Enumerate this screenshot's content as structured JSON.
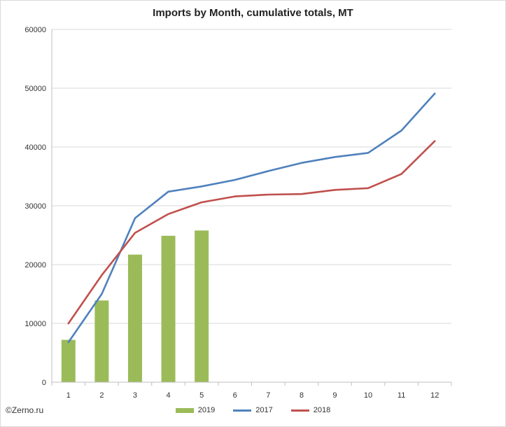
{
  "chart_data": {
    "type": "bar",
    "title": "Imports by Month, cumulative totals, MT",
    "xlabel": "",
    "ylabel": "",
    "categories": [
      "1",
      "2",
      "3",
      "4",
      "5",
      "6",
      "7",
      "8",
      "9",
      "10",
      "11",
      "12"
    ],
    "ylim": [
      0,
      60000
    ],
    "yticks": [
      "0",
      "10000",
      "20000",
      "30000",
      "40000",
      "50000",
      "60000"
    ],
    "grid": true,
    "legend_position": "bottom",
    "series": [
      {
        "name": "2019",
        "type": "bar",
        "color": "#9bbb59",
        "values": [
          7200,
          13900,
          21700,
          24900,
          25800,
          null,
          null,
          null,
          null,
          null,
          null,
          null
        ]
      },
      {
        "name": "2017",
        "type": "line",
        "color": "#4f81bd",
        "values": [
          6800,
          15000,
          27900,
          32400,
          33300,
          34400,
          35900,
          37300,
          38300,
          39000,
          42800,
          49100
        ]
      },
      {
        "name": "2018",
        "type": "line",
        "color": "#c0504d",
        "values": [
          10000,
          18200,
          25400,
          28600,
          30600,
          31600,
          31900,
          32000,
          32700,
          33000,
          35400,
          41000
        ]
      }
    ]
  },
  "footer": {
    "credit": "©Zerno.ru"
  }
}
